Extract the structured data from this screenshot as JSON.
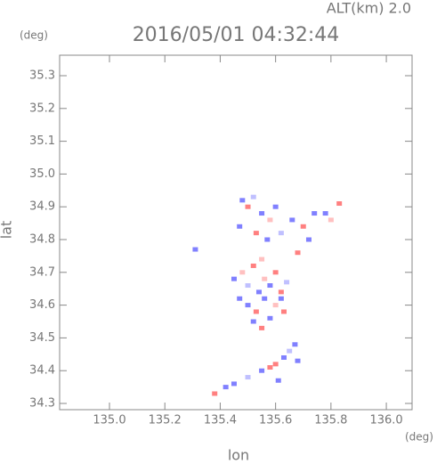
{
  "chart_data": {
    "type": "scatter",
    "title": "2016/05/01 04:32:44",
    "annotation": "ALT(km) 2.0",
    "x_label": "lon",
    "y_label": "lat",
    "x_unit": "(deg)",
    "y_unit": "(deg)",
    "xlim": [
      134.82,
      136.093
    ],
    "ylim": [
      34.281,
      35.3625
    ],
    "xticks": [
      {
        "value": 135.0,
        "label": "135.0"
      },
      135.2,
      135.4,
      135.6,
      135.8,
      {
        "value": 136.0,
        "label": "136.0"
      }
    ],
    "yticks": [
      34.3,
      34.4,
      34.5,
      34.6,
      34.7,
      34.8,
      34.9,
      {
        "value": 35.0,
        "label": "35.0"
      },
      35.1,
      35.2,
      35.3
    ],
    "x": [
      135.48,
      135.5,
      135.52,
      135.55,
      135.58,
      135.6,
      135.47,
      135.53,
      135.57,
      135.62,
      135.66,
      135.7,
      135.74,
      135.78,
      135.8,
      135.83,
      135.72,
      135.68,
      135.31,
      135.45,
      135.48,
      135.5,
      135.52,
      135.54,
      135.56,
      135.58,
      135.6,
      135.62,
      135.64,
      135.5,
      135.53,
      135.56,
      135.6,
      135.63,
      135.52,
      135.55,
      135.58,
      135.47,
      135.62,
      135.55,
      135.42,
      135.45,
      135.5,
      135.55,
      135.6,
      135.63,
      135.65,
      135.67,
      135.68,
      135.38,
      135.58,
      135.61
    ],
    "y": [
      34.92,
      34.9,
      34.93,
      34.88,
      34.86,
      34.9,
      34.84,
      34.82,
      34.8,
      34.82,
      34.86,
      34.84,
      34.88,
      34.88,
      34.86,
      34.91,
      34.8,
      34.76,
      34.77,
      34.68,
      34.7,
      34.66,
      34.72,
      34.64,
      34.68,
      34.66,
      34.7,
      34.62,
      34.67,
      34.6,
      34.58,
      34.62,
      34.6,
      34.58,
      34.55,
      34.53,
      34.56,
      34.62,
      34.64,
      34.74,
      34.35,
      34.36,
      34.38,
      34.4,
      34.42,
      34.44,
      34.46,
      34.48,
      34.43,
      34.33,
      34.41,
      34.37
    ],
    "colors": [
      "#8080ff",
      "#ff8080",
      "#c0c0ff",
      "#8080ff",
      "#ffc0c0",
      "#8080ff",
      "#8080ff",
      "#ff8080",
      "#8080ff",
      "#c0c0ff",
      "#8080ff",
      "#ff8080",
      "#8080ff",
      "#8080ff",
      "#ffc0c0",
      "#ff8080",
      "#8080ff",
      "#ff8080",
      "#8080ff",
      "#8080ff",
      "#ffc0c0",
      "#c0c0ff",
      "#ff8080",
      "#8080ff",
      "#ffc0c0",
      "#8080ff",
      "#ff8080",
      "#8080ff",
      "#c0c0ff",
      "#8080ff",
      "#ff8080",
      "#8080ff",
      "#ffc0c0",
      "#ff8080",
      "#8080ff",
      "#ff8080",
      "#8080ff",
      "#8080ff",
      "#ff8080",
      "#ffc0c0",
      "#8080ff",
      "#8080ff",
      "#c0c0ff",
      "#8080ff",
      "#ff8080",
      "#8080ff",
      "#c0c0ff",
      "#8080ff",
      "#8080ff",
      "#ff8080",
      "#ff8080",
      "#8080ff"
    ]
  }
}
